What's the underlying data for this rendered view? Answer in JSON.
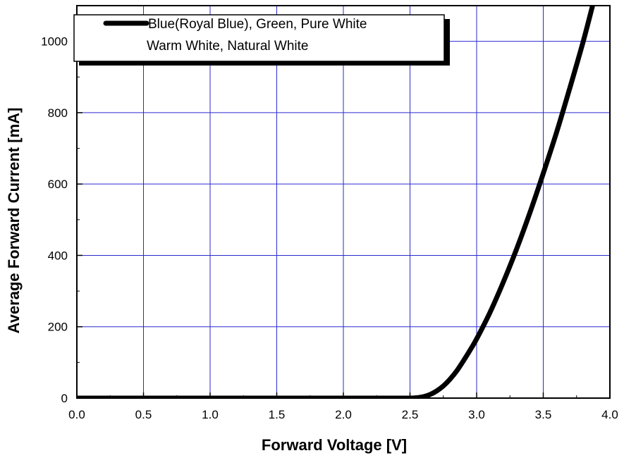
{
  "chart_data": {
    "type": "line",
    "xlabel": "Forward Voltage [V]",
    "ylabel": "Average Forward Current [mA]",
    "xlim": [
      0.0,
      4.0
    ],
    "ylim": [
      0,
      1100
    ],
    "x_ticks": [
      "0.0",
      "0.5",
      "1.0",
      "1.5",
      "2.0",
      "2.5",
      "3.0",
      "3.5",
      "4.0"
    ],
    "y_ticks": [
      "0",
      "200",
      "400",
      "600",
      "800",
      "1000"
    ],
    "grid": true,
    "grid_color": "#2a2ad0",
    "legend": {
      "placement": "top-left",
      "lines": [
        "Blue(Royal Blue), Green, Pure White",
        "Warm White, Natural White"
      ]
    },
    "series": [
      {
        "color": "#000000",
        "x": [
          0.0,
          0.5,
          1.0,
          1.5,
          2.0,
          2.4,
          2.5,
          2.55,
          2.6,
          2.65,
          2.7,
          2.75,
          2.8,
          2.85,
          2.9,
          2.95,
          3.0,
          3.1,
          3.2,
          3.3,
          3.4,
          3.5,
          3.6,
          3.7,
          3.8,
          3.87
        ],
        "y": [
          0,
          0,
          0,
          0,
          0,
          0,
          0,
          1,
          4,
          10,
          20,
          34,
          53,
          76,
          104,
          134,
          166,
          240,
          325,
          418,
          520,
          630,
          745,
          870,
          1000,
          1100
        ]
      }
    ]
  }
}
